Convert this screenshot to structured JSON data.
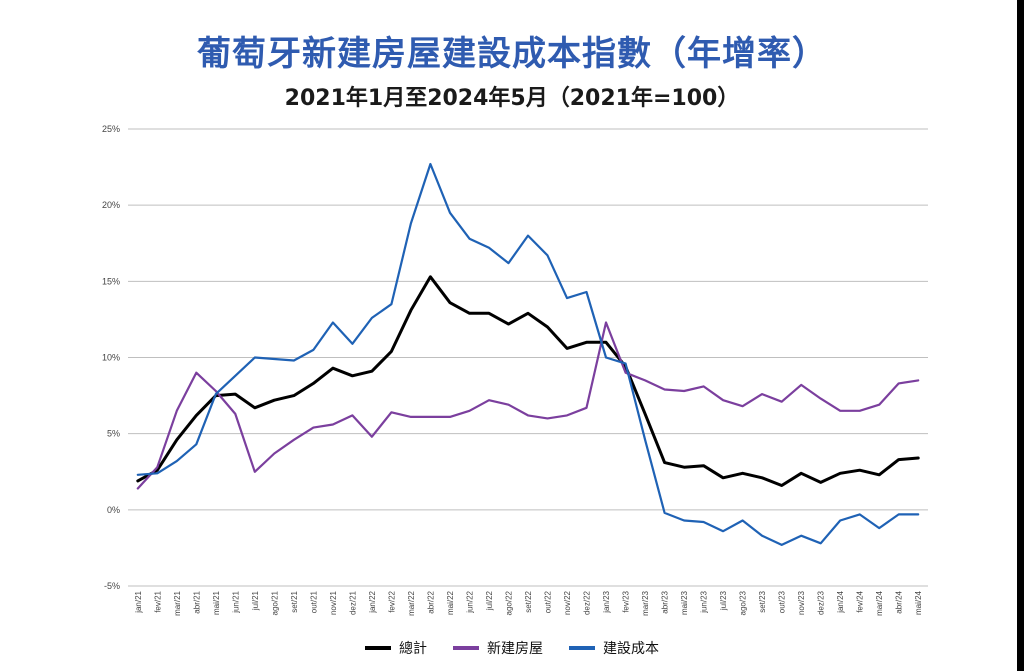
{
  "title": "葡萄牙新建房屋建設成本指數（年增率）",
  "subtitle": "2021年1月至2024年5月（2021年=100）",
  "chart_data": {
    "type": "line",
    "categories": [
      "jan/21",
      "fev/21",
      "mar/21",
      "abr/21",
      "mai/21",
      "jun/21",
      "jul/21",
      "ago/21",
      "set/21",
      "out/21",
      "nov/21",
      "dez/21",
      "jan/22",
      "fev/22",
      "mar/22",
      "abr/22",
      "mai/22",
      "jun/22",
      "jul/22",
      "ago/22",
      "set/22",
      "out/22",
      "nov/22",
      "dez/22",
      "jan/23",
      "fev/23",
      "mar/23",
      "abr/23",
      "mai/23",
      "jun/23",
      "jul/23",
      "ago/23",
      "set/23",
      "out/23",
      "nov/23",
      "dez/23",
      "jan/24",
      "fev/24",
      "mar/24",
      "abr/24",
      "mai/24"
    ],
    "yticks": [
      "25%",
      "20%",
      "15%",
      "10%",
      "5%",
      "0%",
      "-5%"
    ],
    "ylim": [
      -5,
      25
    ],
    "grid": true,
    "legend_position": "bottom",
    "series": [
      {
        "name": "總計",
        "color": "#000000",
        "values": [
          1.9,
          2.6,
          4.6,
          6.2,
          7.5,
          7.6,
          6.7,
          7.2,
          7.5,
          8.3,
          9.3,
          8.8,
          9.1,
          10.4,
          13.1,
          15.3,
          13.6,
          12.9,
          12.9,
          12.2,
          12.9,
          12.0,
          10.6,
          11.0,
          11.0,
          9.4,
          6.3,
          3.1,
          2.8,
          2.9,
          2.1,
          2.4,
          2.1,
          1.6,
          2.4,
          1.8,
          2.4,
          2.6,
          2.3,
          3.3,
          3.4
        ]
      },
      {
        "name": "新建房屋",
        "color": "#7b3f9e",
        "values": [
          1.4,
          2.8,
          6.5,
          9.0,
          7.8,
          6.3,
          2.5,
          3.7,
          4.6,
          5.4,
          5.6,
          6.2,
          4.8,
          6.4,
          6.1,
          6.1,
          6.1,
          6.5,
          7.2,
          6.9,
          6.2,
          6.0,
          6.2,
          6.7,
          12.3,
          9.0,
          8.5,
          7.9,
          7.8,
          8.1,
          7.2,
          6.8,
          7.6,
          7.1,
          8.2,
          7.3,
          6.5,
          6.5,
          6.9,
          8.3,
          8.5
        ]
      },
      {
        "name": "建設成本",
        "color": "#1f62b5",
        "values": [
          2.3,
          2.4,
          3.2,
          4.3,
          7.6,
          8.8,
          10.0,
          9.9,
          9.8,
          10.5,
          12.3,
          10.9,
          12.6,
          13.5,
          18.8,
          22.7,
          19.5,
          17.8,
          17.2,
          16.2,
          18.0,
          16.7,
          13.9,
          14.3,
          10.0,
          9.6,
          4.6,
          -0.2,
          -0.7,
          -0.8,
          -1.4,
          -0.7,
          -1.7,
          -2.3,
          -1.7,
          -2.2,
          -0.7,
          -0.3,
          -1.2,
          -0.3,
          -0.3
        ]
      }
    ]
  }
}
